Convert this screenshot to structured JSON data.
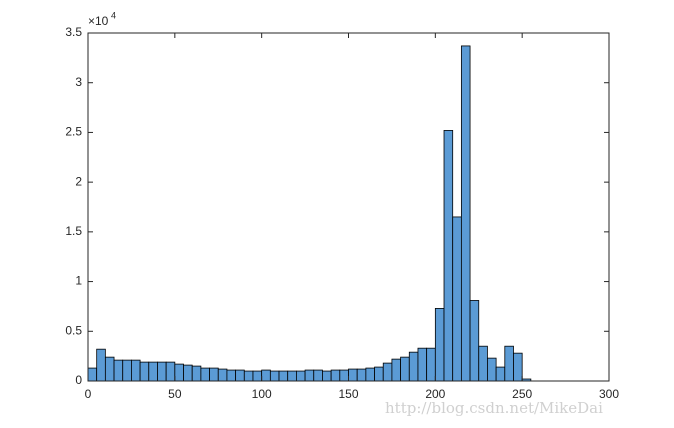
{
  "chart_data": {
    "type": "histogram",
    "bins": [
      0,
      5,
      10,
      15,
      20,
      25,
      30,
      35,
      40,
      45,
      50,
      55,
      60,
      65,
      70,
      75,
      80,
      85,
      90,
      95,
      100,
      105,
      110,
      115,
      120,
      125,
      130,
      135,
      140,
      145,
      150,
      155,
      160,
      165,
      170,
      175,
      180,
      185,
      190,
      195,
      200,
      205,
      210,
      215,
      220,
      225,
      230,
      235,
      240,
      245,
      250,
      255
    ],
    "values": [
      0.13,
      0.32,
      0.24,
      0.21,
      0.21,
      0.21,
      0.19,
      0.19,
      0.19,
      0.19,
      0.17,
      0.16,
      0.15,
      0.13,
      0.13,
      0.12,
      0.11,
      0.11,
      0.1,
      0.1,
      0.11,
      0.1,
      0.1,
      0.1,
      0.1,
      0.11,
      0.11,
      0.1,
      0.11,
      0.11,
      0.12,
      0.12,
      0.13,
      0.14,
      0.18,
      0.22,
      0.24,
      0.29,
      0.33,
      0.33,
      0.73,
      2.52,
      1.65,
      3.37,
      0.81,
      0.35,
      0.23,
      0.14,
      0.35,
      0.28,
      0.02
    ],
    "color": "#5b9bd5",
    "xlim": [
      0,
      300
    ],
    "xticks": [
      0,
      50,
      100,
      150,
      200,
      250,
      300
    ],
    "ylim": [
      0,
      3.5
    ],
    "yticks": [
      0,
      0.5,
      1,
      1.5,
      2,
      2.5,
      3,
      3.5
    ],
    "y_scale_label": {
      "base": "×10",
      "exponent": "4"
    },
    "watermark": "http://blog.csdn.net/MikeDai"
  }
}
